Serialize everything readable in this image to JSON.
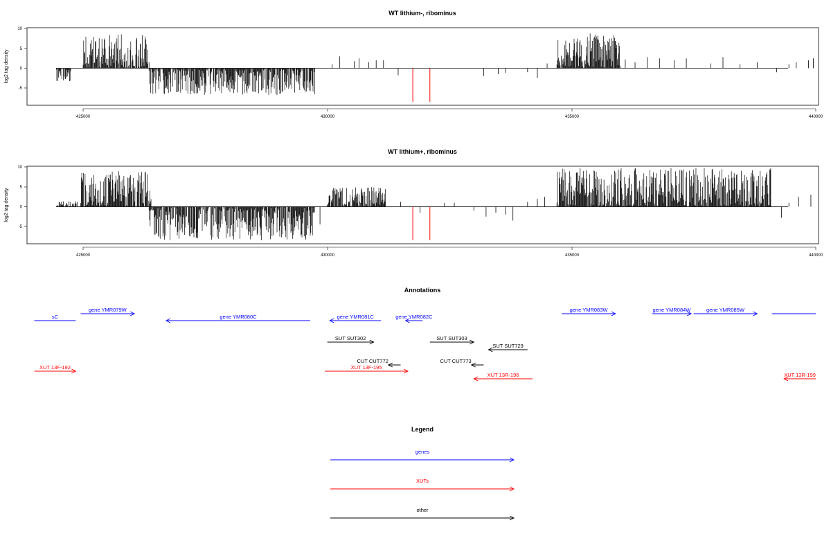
{
  "chart_data": [
    {
      "type": "bar",
      "title": "WT lithium-, ribominus",
      "ylabel": "log2 tag density",
      "xlim": [
        424000,
        440000
      ],
      "ylim": [
        -9,
        10
      ],
      "xticks": [
        "425000",
        "430000",
        "435000",
        "440000"
      ],
      "yticks": [
        "10",
        "5",
        "0",
        "-5"
      ],
      "signal_regions": [
        {
          "start": 424450,
          "end": 424750,
          "min": -3.5,
          "max": 0,
          "seed": 11
        },
        {
          "start": 425000,
          "end": 426350,
          "min": 0,
          "max": 8.6,
          "seed": 12
        },
        {
          "start": 426350,
          "end": 429750,
          "min": -6.8,
          "max": 0,
          "seed": 13
        },
        {
          "start": 434700,
          "end": 436000,
          "min": 0,
          "max": 8.8,
          "seed": 14
        }
      ],
      "sparse_peaks": [
        [
          430100,
          1.0
        ],
        [
          430250,
          3.0
        ],
        [
          430550,
          1.8
        ],
        [
          430650,
          2.5
        ],
        [
          430850,
          1.5
        ],
        [
          431000,
          2.0
        ],
        [
          431150,
          2.0
        ],
        [
          431450,
          -1.8
        ],
        [
          433200,
          -2.0
        ],
        [
          433500,
          -1.5
        ],
        [
          433650,
          -1.2
        ],
        [
          434100,
          -1.0
        ],
        [
          434300,
          -2.5
        ],
        [
          434500,
          1.2
        ],
        [
          436100,
          2.2
        ],
        [
          436300,
          1.5
        ],
        [
          436550,
          2.8
        ],
        [
          436800,
          2.5
        ],
        [
          437100,
          2.0
        ],
        [
          437350,
          2.5
        ],
        [
          437850,
          1.2
        ],
        [
          438100,
          2.8
        ],
        [
          438450,
          1.0
        ],
        [
          438800,
          1.5
        ],
        [
          439200,
          -1.0
        ],
        [
          439450,
          1.0
        ],
        [
          439600,
          1.5
        ],
        [
          439850,
          2.0
        ],
        [
          439950,
          2.5
        ]
      ],
      "marker_positions": [
        431750,
        432100
      ],
      "marker_depth": -8.5,
      "series": [
        {
          "values": []
        }
      ]
    },
    {
      "type": "bar",
      "title": "WT lithium+, ribominus",
      "ylabel": "log2 tag density",
      "xlim": [
        424000,
        440000
      ],
      "ylim": [
        -9,
        10
      ],
      "xticks": [
        "425000",
        "430000",
        "435000",
        "440000"
      ],
      "yticks": [
        "10",
        "5",
        "0",
        "-5"
      ],
      "signal_regions": [
        {
          "start": 424450,
          "end": 424900,
          "min": -5.0,
          "max": 1.5,
          "seed": 21
        },
        {
          "start": 424950,
          "end": 426400,
          "min": 0,
          "max": 9.0,
          "seed": 22
        },
        {
          "start": 426350,
          "end": 429750,
          "min": -8.5,
          "max": 0,
          "seed": 23
        },
        {
          "start": 430000,
          "end": 431200,
          "min": 0,
          "max": 5.0,
          "seed": 24
        },
        {
          "start": 434700,
          "end": 439100,
          "min": 0,
          "max": 9.8,
          "seed": 25
        }
      ],
      "sparse_peaks": [
        [
          429850,
          -4.5
        ],
        [
          431500,
          1.2
        ],
        [
          431900,
          -1.5
        ],
        [
          432400,
          1.0
        ],
        [
          432600,
          1.0
        ],
        [
          433000,
          -1.0
        ],
        [
          433250,
          -2.5
        ],
        [
          433450,
          -1.5
        ],
        [
          433650,
          -2.0
        ],
        [
          433800,
          -3.5
        ],
        [
          434100,
          1.2
        ],
        [
          434300,
          2.0
        ],
        [
          434450,
          2.5
        ],
        [
          439300,
          -2.8
        ],
        [
          439450,
          1.0
        ],
        [
          439650,
          2.5
        ],
        [
          439900,
          3.0
        ]
      ],
      "marker_positions": [
        431750,
        432100
      ],
      "marker_depth": -8.5,
      "series": [
        {
          "values": []
        }
      ]
    }
  ],
  "annotations": {
    "title": "Annotations",
    "xlim": [
      424000,
      440000
    ],
    "features": [
      {
        "label": "sC",
        "x1": 424000,
        "x2": 424850,
        "row": "gene_low",
        "dir": "none",
        "color": "#0000ff"
      },
      {
        "label": "gene YMR079W",
        "x1": 424950,
        "x2": 426050,
        "row": "gene_high",
        "dir": "right",
        "color": "#0000ff"
      },
      {
        "label": "gene YMR080C",
        "x1": 426700,
        "x2": 429650,
        "row": "gene_low",
        "dir": "left",
        "color": "#0000ff"
      },
      {
        "label": "gene YMR081C",
        "x1": 430050,
        "x2": 431100,
        "row": "gene_low",
        "dir": "left",
        "color": "#0000ff"
      },
      {
        "label": "gene YMR082C",
        "x1": 431600,
        "x2": 431950,
        "row": "gene_low",
        "dir": "left",
        "color": "#0000ff"
      },
      {
        "label": "gene YMR083W",
        "x1": 434800,
        "x2": 435900,
        "row": "gene_high",
        "dir": "right",
        "color": "#0000ff"
      },
      {
        "label": "gene YMR084W",
        "x1": 436650,
        "x2": 437450,
        "row": "gene_high",
        "dir": "right",
        "color": "#0000ff"
      },
      {
        "label": "gene YMR085W",
        "x1": 437500,
        "x2": 438800,
        "row": "gene_high",
        "dir": "right",
        "color": "#0000ff"
      },
      {
        "label": "",
        "x1": 439100,
        "x2": 440000,
        "row": "gene_high",
        "dir": "none",
        "color": "#0000ff"
      },
      {
        "label": "SUT SUT302",
        "x1": 430000,
        "x2": 430950,
        "row": "sut",
        "dir": "right",
        "color": "#000000"
      },
      {
        "label": "SUT SUT303",
        "x1": 432100,
        "x2": 433000,
        "row": "sut",
        "dir": "right",
        "color": "#000000"
      },
      {
        "label": "SUT SUT729",
        "x1": 433300,
        "x2": 434100,
        "row": "sut_low",
        "dir": "left",
        "color": "#000000"
      },
      {
        "label": "CUT CUT772",
        "x1": 431250,
        "x2": 431500,
        "row": "cut",
        "dir": "left",
        "color": "#000000"
      },
      {
        "label": "CUT CUT773",
        "x1": 432950,
        "x2": 433200,
        "row": "cut",
        "dir": "left",
        "color": "#000000"
      },
      {
        "label": "XUT 13F-192",
        "x1": 424000,
        "x2": 424850,
        "row": "xut",
        "dir": "right",
        "color": "#ff0000"
      },
      {
        "label": "XUT 13F-195",
        "x1": 429950,
        "x2": 431650,
        "row": "xut",
        "dir": "right",
        "color": "#ff0000"
      },
      {
        "label": "XUT 13R-196",
        "x1": 433000,
        "x2": 434200,
        "row": "xut_low",
        "dir": "left",
        "color": "#ff0000"
      },
      {
        "label": "XUT 13R-199",
        "x1": 439350,
        "x2": 440000,
        "row": "xut_low",
        "dir": "left",
        "color": "#ff0000"
      }
    ]
  },
  "legend": {
    "title": "Legend",
    "items": [
      {
        "label": "genes",
        "color": "#0000ff"
      },
      {
        "label": "XUTs",
        "color": "#ff0000"
      },
      {
        "label": "other",
        "color": "#000000"
      }
    ]
  }
}
